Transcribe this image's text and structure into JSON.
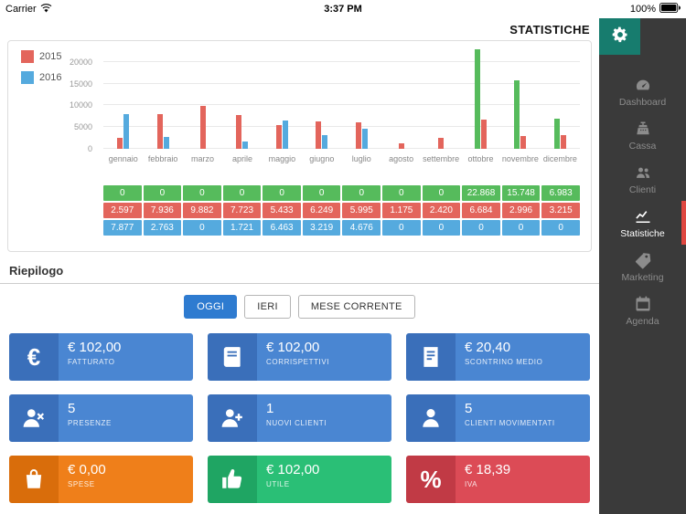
{
  "status_bar": {
    "carrier": "Carrier",
    "time": "3:37 PM",
    "battery_pct": "100%"
  },
  "header": {
    "title": "STATISTICHE"
  },
  "chart_data": {
    "type": "bar",
    "categories": [
      "gennaio",
      "febbraio",
      "marzo",
      "aprile",
      "maggio",
      "giugno",
      "luglio",
      "agosto",
      "settembre",
      "ottobre",
      "novembre",
      "dicembre"
    ],
    "y_ticks": [
      0,
      5000,
      10000,
      15000,
      20000
    ],
    "ylim": [
      0,
      23500
    ],
    "grid": true,
    "legend_position": "top-left",
    "legend": [
      {
        "label": "2015",
        "color": "#e3655c"
      },
      {
        "label": "2016",
        "color": "#55aade"
      }
    ],
    "series": [
      {
        "name": "",
        "color": "#56bb5c",
        "values": [
          0,
          0,
          0,
          0,
          0,
          0,
          0,
          0,
          0,
          22868,
          15748,
          6983
        ],
        "labels": [
          "0",
          "0",
          "0",
          "0",
          "0",
          "0",
          "0",
          "0",
          "0",
          "22.868",
          "15.748",
          "6.983"
        ]
      },
      {
        "name": "2015",
        "color": "#e3655c",
        "values": [
          2597,
          7936,
          9882,
          7723,
          5433,
          6249,
          5995,
          1175,
          2420,
          6684,
          2996,
          3215
        ],
        "labels": [
          "2.597",
          "7.936",
          "9.882",
          "7.723",
          "5.433",
          "6.249",
          "5.995",
          "1.175",
          "2.420",
          "6.684",
          "2.996",
          "3.215"
        ]
      },
      {
        "name": "2016",
        "color": "#55aade",
        "values": [
          7877,
          2763,
          0,
          1721,
          6463,
          3219,
          4676,
          0,
          0,
          0,
          0,
          0
        ],
        "labels": [
          "7.877",
          "2.763",
          "0",
          "1.721",
          "6.463",
          "3.219",
          "4.676",
          "0",
          "0",
          "0",
          "0",
          "0"
        ]
      }
    ]
  },
  "riepilogo": {
    "title": "Riepilogo",
    "filters": [
      {
        "label": "OGGI",
        "active": true
      },
      {
        "label": "IERI",
        "active": false
      },
      {
        "label": "MESE CORRENTE",
        "active": false
      }
    ]
  },
  "cards": [
    {
      "value": "€ 102,00",
      "label": "FATTURATO",
      "icon": "euro-icon",
      "color": "blue"
    },
    {
      "value": "€ 102,00",
      "label": "CORRISPETTIVI",
      "icon": "book-icon",
      "color": "blue"
    },
    {
      "value": "€ 20,40",
      "label": "SCONTRINO MEDIO",
      "icon": "receipt-icon",
      "color": "blue"
    },
    {
      "value": "5",
      "label": "PRESENZE",
      "icon": "person-x-icon",
      "color": "blue"
    },
    {
      "value": "1",
      "label": "NUOVI CLIENTI",
      "icon": "person-plus-icon",
      "color": "blue"
    },
    {
      "value": "5",
      "label": "CLIENTI MOVIMENTATI",
      "icon": "person-icon",
      "color": "blue"
    },
    {
      "value": "€ 0,00",
      "label": "SPESE",
      "icon": "shopping-bag-icon",
      "color": "orange"
    },
    {
      "value": "€ 102,00",
      "label": "UTILE",
      "icon": "thumbs-up-icon",
      "color": "green"
    },
    {
      "value": "€ 18,39",
      "label": "IVA",
      "icon": "percent-icon",
      "color": "red"
    }
  ],
  "sidebar": {
    "items": [
      {
        "label": "Dashboard",
        "icon": "dashboard-icon",
        "active": false
      },
      {
        "label": "Cassa",
        "icon": "cassa-icon",
        "active": false
      },
      {
        "label": "Clienti",
        "icon": "clienti-icon",
        "active": false
      },
      {
        "label": "Statistiche",
        "icon": "statistiche-icon",
        "active": true
      },
      {
        "label": "Marketing",
        "icon": "marketing-icon",
        "active": false
      },
      {
        "label": "Agenda",
        "icon": "agenda-icon",
        "active": false
      }
    ]
  },
  "colors": {
    "accent_red": "#df4740",
    "teal": "#177c6e",
    "filter_blue": "#2e7bd0",
    "card_blue": "#4a86d2",
    "card_blue_dark": "#3a6fba",
    "card_orange": "#ef7f1a",
    "card_orange_dark": "#d96d0b",
    "card_green": "#2abf76",
    "card_green_dark": "#1fa563",
    "card_red": "#dc4b56",
    "card_red_dark": "#c13a45"
  }
}
